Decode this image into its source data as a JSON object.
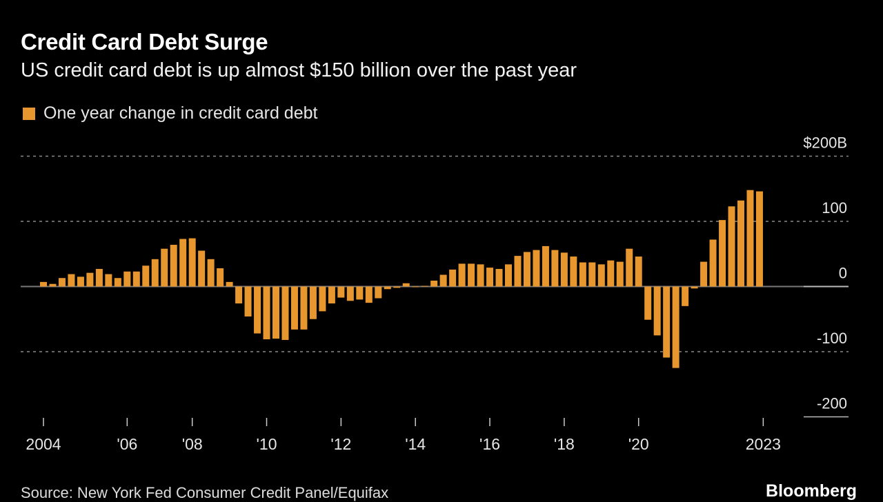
{
  "title": "Credit Card Debt Surge",
  "subtitle": "US credit card debt is up almost $150 billion over the past year",
  "source": "Source: New York Fed Consumer Credit Panel/Equifax",
  "logo": "Bloomberg",
  "colors": {
    "bar": "#E8962E",
    "background": "#000000",
    "grid": "#8a8a8a"
  },
  "chart_data": {
    "type": "bar",
    "title": "Credit Card Debt Surge",
    "subtitle": "US credit card debt is up almost $150 billion over the past year",
    "legend": [
      {
        "name": "One year change in credit card debt",
        "color": "#E8962E"
      }
    ],
    "legend_placement": "top-left",
    "frequency": "quarterly",
    "categories_start": "2004 Q1",
    "categories_end": "2023 Q2",
    "series": [
      {
        "name": "One year change in credit card debt",
        "values": [
          7,
          4,
          13,
          19,
          15,
          21,
          27,
          19,
          13,
          23,
          23,
          32,
          42,
          58,
          64,
          73,
          74,
          55,
          42,
          28,
          7,
          -26,
          -46,
          -72,
          -81,
          -80,
          -82,
          -66,
          -66,
          -50,
          -38,
          -26,
          -17,
          -22,
          -20,
          -25,
          -18,
          -4,
          -2,
          5,
          -1,
          1,
          9,
          18,
          26,
          35,
          35,
          34,
          29,
          27,
          34,
          47,
          53,
          56,
          62,
          56,
          52,
          46,
          37,
          37,
          34,
          40,
          38,
          58,
          46,
          -51,
          -75,
          -109,
          -125,
          -30,
          -3,
          38,
          72,
          102,
          123,
          132,
          148,
          146
        ]
      }
    ],
    "x_ticks": [
      {
        "label": "2004",
        "index": 0
      },
      {
        "label": "'06",
        "index": 9
      },
      {
        "label": "'08",
        "index": 16
      },
      {
        "label": "'10",
        "index": 24
      },
      {
        "label": "'12",
        "index": 32
      },
      {
        "label": "'14",
        "index": 40
      },
      {
        "label": "'16",
        "index": 48
      },
      {
        "label": "'18",
        "index": 56
      },
      {
        "label": "'20",
        "index": 64
      },
      {
        "label": "2023",
        "index": 77.4
      }
    ],
    "y_ticks": [
      {
        "value": 200,
        "label": "$200B"
      },
      {
        "value": 100,
        "label": "100"
      },
      {
        "value": 0,
        "label": "0"
      },
      {
        "value": -100,
        "label": "-100"
      },
      {
        "value": -200,
        "label": "-200"
      }
    ],
    "ylim": [
      -200,
      200
    ],
    "yunit": "billions of dollars",
    "grid": true
  }
}
